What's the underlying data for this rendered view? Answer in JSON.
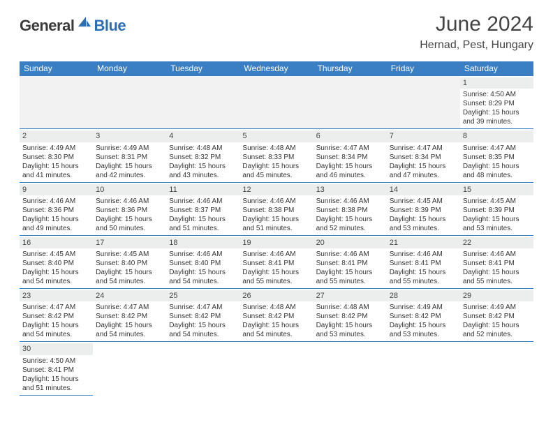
{
  "brand": {
    "part1": "General",
    "part2": "Blue"
  },
  "title": "June 2024",
  "location": "Hernad, Pest, Hungary",
  "colors": {
    "header_bg": "#3a7fc4",
    "daynum_bg": "#eceeee",
    "empty_bg": "#f2f2f2",
    "brand_dark": "#3a3a3a",
    "brand_blue": "#2d6fb5"
  },
  "weekdays": [
    "Sunday",
    "Monday",
    "Tuesday",
    "Wednesday",
    "Thursday",
    "Friday",
    "Saturday"
  ],
  "leading_blank": 6,
  "days": [
    {
      "n": 1,
      "sunrise": "4:50 AM",
      "sunset": "8:29 PM",
      "daylight": "15 hours and 39 minutes."
    },
    {
      "n": 2,
      "sunrise": "4:49 AM",
      "sunset": "8:30 PM",
      "daylight": "15 hours and 41 minutes."
    },
    {
      "n": 3,
      "sunrise": "4:49 AM",
      "sunset": "8:31 PM",
      "daylight": "15 hours and 42 minutes."
    },
    {
      "n": 4,
      "sunrise": "4:48 AM",
      "sunset": "8:32 PM",
      "daylight": "15 hours and 43 minutes."
    },
    {
      "n": 5,
      "sunrise": "4:48 AM",
      "sunset": "8:33 PM",
      "daylight": "15 hours and 45 minutes."
    },
    {
      "n": 6,
      "sunrise": "4:47 AM",
      "sunset": "8:34 PM",
      "daylight": "15 hours and 46 minutes."
    },
    {
      "n": 7,
      "sunrise": "4:47 AM",
      "sunset": "8:34 PM",
      "daylight": "15 hours and 47 minutes."
    },
    {
      "n": 8,
      "sunrise": "4:47 AM",
      "sunset": "8:35 PM",
      "daylight": "15 hours and 48 minutes."
    },
    {
      "n": 9,
      "sunrise": "4:46 AM",
      "sunset": "8:36 PM",
      "daylight": "15 hours and 49 minutes."
    },
    {
      "n": 10,
      "sunrise": "4:46 AM",
      "sunset": "8:36 PM",
      "daylight": "15 hours and 50 minutes."
    },
    {
      "n": 11,
      "sunrise": "4:46 AM",
      "sunset": "8:37 PM",
      "daylight": "15 hours and 51 minutes."
    },
    {
      "n": 12,
      "sunrise": "4:46 AM",
      "sunset": "8:38 PM",
      "daylight": "15 hours and 51 minutes."
    },
    {
      "n": 13,
      "sunrise": "4:46 AM",
      "sunset": "8:38 PM",
      "daylight": "15 hours and 52 minutes."
    },
    {
      "n": 14,
      "sunrise": "4:45 AM",
      "sunset": "8:39 PM",
      "daylight": "15 hours and 53 minutes."
    },
    {
      "n": 15,
      "sunrise": "4:45 AM",
      "sunset": "8:39 PM",
      "daylight": "15 hours and 53 minutes."
    },
    {
      "n": 16,
      "sunrise": "4:45 AM",
      "sunset": "8:40 PM",
      "daylight": "15 hours and 54 minutes."
    },
    {
      "n": 17,
      "sunrise": "4:45 AM",
      "sunset": "8:40 PM",
      "daylight": "15 hours and 54 minutes."
    },
    {
      "n": 18,
      "sunrise": "4:46 AM",
      "sunset": "8:40 PM",
      "daylight": "15 hours and 54 minutes."
    },
    {
      "n": 19,
      "sunrise": "4:46 AM",
      "sunset": "8:41 PM",
      "daylight": "15 hours and 55 minutes."
    },
    {
      "n": 20,
      "sunrise": "4:46 AM",
      "sunset": "8:41 PM",
      "daylight": "15 hours and 55 minutes."
    },
    {
      "n": 21,
      "sunrise": "4:46 AM",
      "sunset": "8:41 PM",
      "daylight": "15 hours and 55 minutes."
    },
    {
      "n": 22,
      "sunrise": "4:46 AM",
      "sunset": "8:41 PM",
      "daylight": "15 hours and 55 minutes."
    },
    {
      "n": 23,
      "sunrise": "4:47 AM",
      "sunset": "8:42 PM",
      "daylight": "15 hours and 54 minutes."
    },
    {
      "n": 24,
      "sunrise": "4:47 AM",
      "sunset": "8:42 PM",
      "daylight": "15 hours and 54 minutes."
    },
    {
      "n": 25,
      "sunrise": "4:47 AM",
      "sunset": "8:42 PM",
      "daylight": "15 hours and 54 minutes."
    },
    {
      "n": 26,
      "sunrise": "4:48 AM",
      "sunset": "8:42 PM",
      "daylight": "15 hours and 54 minutes."
    },
    {
      "n": 27,
      "sunrise": "4:48 AM",
      "sunset": "8:42 PM",
      "daylight": "15 hours and 53 minutes."
    },
    {
      "n": 28,
      "sunrise": "4:49 AM",
      "sunset": "8:42 PM",
      "daylight": "15 hours and 53 minutes."
    },
    {
      "n": 29,
      "sunrise": "4:49 AM",
      "sunset": "8:42 PM",
      "daylight": "15 hours and 52 minutes."
    },
    {
      "n": 30,
      "sunrise": "4:50 AM",
      "sunset": "8:41 PM",
      "daylight": "15 hours and 51 minutes."
    }
  ],
  "labels": {
    "sunrise": "Sunrise:",
    "sunset": "Sunset:",
    "daylight": "Daylight:"
  }
}
